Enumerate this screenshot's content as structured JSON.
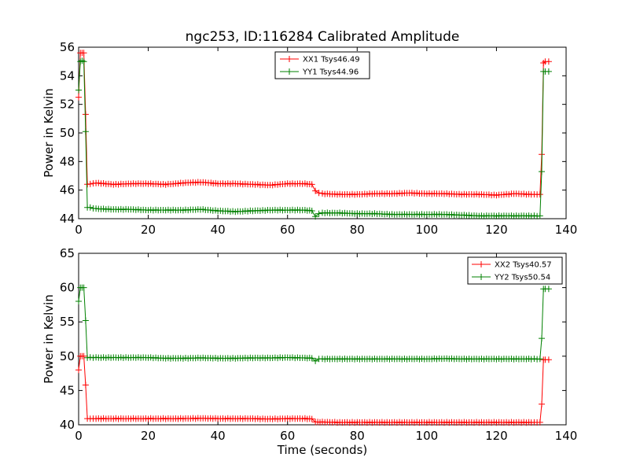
{
  "chart_data": [
    {
      "type": "line",
      "title": "ngc253, ID:116284 Calibrated Amplitude",
      "xlabel": "",
      "ylabel": "Power in Kelvin",
      "xlim": [
        0,
        140
      ],
      "ylim": [
        44,
        56
      ],
      "xticks": [
        "0",
        "20",
        "40",
        "60",
        "80",
        "100",
        "120",
        "140"
      ],
      "yticks": [
        "44",
        "46",
        "48",
        "50",
        "52",
        "54",
        "56"
      ],
      "legend": "top-center",
      "grid": false,
      "series": [
        {
          "name": "XX1 Tsys46.49",
          "color": "#ff0000",
          "points": [
            [
              0,
              52.5
            ],
            [
              0.5,
              55.6
            ],
            [
              1,
              55.6
            ],
            [
              1.5,
              55.6
            ],
            [
              2,
              51.3
            ],
            [
              2.5,
              46.4
            ],
            [
              5,
              46.5
            ],
            [
              10,
              46.4
            ],
            [
              15,
              46.45
            ],
            [
              20,
              46.45
            ],
            [
              25,
              46.4
            ],
            [
              30,
              46.5
            ],
            [
              35,
              46.55
            ],
            [
              38,
              46.5
            ],
            [
              40,
              46.45
            ],
            [
              45,
              46.45
            ],
            [
              50,
              46.4
            ],
            [
              55,
              46.35
            ],
            [
              60,
              46.45
            ],
            [
              65,
              46.45
            ],
            [
              67,
              46.4
            ],
            [
              68,
              45.95
            ],
            [
              69,
              45.8
            ],
            [
              70,
              45.75
            ],
            [
              75,
              45.7
            ],
            [
              80,
              45.7
            ],
            [
              85,
              45.75
            ],
            [
              90,
              45.75
            ],
            [
              95,
              45.8
            ],
            [
              100,
              45.75
            ],
            [
              105,
              45.75
            ],
            [
              110,
              45.7
            ],
            [
              115,
              45.7
            ],
            [
              120,
              45.65
            ],
            [
              125,
              45.75
            ],
            [
              130,
              45.7
            ],
            [
              132.5,
              45.7
            ],
            [
              133,
              48.5
            ],
            [
              133.5,
              54.9
            ],
            [
              134,
              55.0
            ],
            [
              135,
              55.0
            ]
          ]
        },
        {
          "name": "YY1 Tsys44.96",
          "color": "#008000",
          "points": [
            [
              0,
              53.0
            ],
            [
              0.5,
              55.0
            ],
            [
              1,
              55.05
            ],
            [
              1.5,
              55.0
            ],
            [
              2,
              50.1
            ],
            [
              2.5,
              44.8
            ],
            [
              5,
              44.7
            ],
            [
              10,
              44.65
            ],
            [
              15,
              44.65
            ],
            [
              20,
              44.6
            ],
            [
              25,
              44.6
            ],
            [
              30,
              44.6
            ],
            [
              35,
              44.65
            ],
            [
              40,
              44.55
            ],
            [
              45,
              44.5
            ],
            [
              50,
              44.55
            ],
            [
              55,
              44.6
            ],
            [
              60,
              44.6
            ],
            [
              65,
              44.6
            ],
            [
              67,
              44.55
            ],
            [
              68,
              44.15
            ],
            [
              69,
              44.35
            ],
            [
              70,
              44.4
            ],
            [
              75,
              44.4
            ],
            [
              80,
              44.35
            ],
            [
              85,
              44.35
            ],
            [
              90,
              44.3
            ],
            [
              95,
              44.3
            ],
            [
              100,
              44.3
            ],
            [
              105,
              44.3
            ],
            [
              110,
              44.25
            ],
            [
              115,
              44.2
            ],
            [
              120,
              44.2
            ],
            [
              125,
              44.2
            ],
            [
              130,
              44.2
            ],
            [
              132.5,
              44.2
            ],
            [
              133,
              47.3
            ],
            [
              133.5,
              54.3
            ],
            [
              134,
              54.3
            ],
            [
              135,
              54.3
            ]
          ]
        }
      ]
    },
    {
      "type": "line",
      "title": "",
      "xlabel": "Time (seconds)",
      "ylabel": "Power in Kelvin",
      "xlim": [
        0,
        140
      ],
      "ylim": [
        40,
        65
      ],
      "xticks": [
        "0",
        "20",
        "40",
        "60",
        "80",
        "100",
        "120",
        "140"
      ],
      "yticks": [
        "40",
        "45",
        "50",
        "55",
        "60",
        "65"
      ],
      "legend": "top-right",
      "grid": false,
      "series": [
        {
          "name": "XX2 Tsys40.57",
          "color": "#ff0000",
          "points": [
            [
              0,
              48.0
            ],
            [
              0.5,
              50.0
            ],
            [
              1,
              50.0
            ],
            [
              1.5,
              50.0
            ],
            [
              2,
              45.8
            ],
            [
              2.5,
              40.9
            ],
            [
              5,
              40.9
            ],
            [
              10,
              40.9
            ],
            [
              15,
              40.9
            ],
            [
              20,
              40.9
            ],
            [
              25,
              40.9
            ],
            [
              30,
              40.9
            ],
            [
              35,
              40.95
            ],
            [
              40,
              40.9
            ],
            [
              45,
              40.9
            ],
            [
              50,
              40.9
            ],
            [
              55,
              40.85
            ],
            [
              60,
              40.9
            ],
            [
              65,
              40.9
            ],
            [
              67,
              40.85
            ],
            [
              68,
              40.4
            ],
            [
              70,
              40.4
            ],
            [
              75,
              40.35
            ],
            [
              80,
              40.35
            ],
            [
              85,
              40.35
            ],
            [
              90,
              40.35
            ],
            [
              95,
              40.35
            ],
            [
              100,
              40.35
            ],
            [
              105,
              40.35
            ],
            [
              110,
              40.35
            ],
            [
              115,
              40.35
            ],
            [
              120,
              40.35
            ],
            [
              125,
              40.35
            ],
            [
              130,
              40.35
            ],
            [
              132.5,
              40.35
            ],
            [
              133,
              43.0
            ],
            [
              133.5,
              49.5
            ],
            [
              134,
              49.5
            ],
            [
              135,
              49.5
            ]
          ]
        },
        {
          "name": "YY2 Tsys50.54",
          "color": "#008000",
          "points": [
            [
              0,
              58.0
            ],
            [
              0.5,
              60.0
            ],
            [
              1,
              60.0
            ],
            [
              1.5,
              60.0
            ],
            [
              2,
              55.2
            ],
            [
              2.5,
              49.8
            ],
            [
              5,
              49.8
            ],
            [
              10,
              49.8
            ],
            [
              15,
              49.8
            ],
            [
              20,
              49.8
            ],
            [
              25,
              49.7
            ],
            [
              30,
              49.7
            ],
            [
              35,
              49.75
            ],
            [
              40,
              49.7
            ],
            [
              45,
              49.7
            ],
            [
              50,
              49.75
            ],
            [
              55,
              49.75
            ],
            [
              60,
              49.8
            ],
            [
              65,
              49.75
            ],
            [
              67,
              49.7
            ],
            [
              68,
              49.3
            ],
            [
              69,
              49.6
            ],
            [
              70,
              49.6
            ],
            [
              75,
              49.6
            ],
            [
              80,
              49.6
            ],
            [
              85,
              49.6
            ],
            [
              90,
              49.6
            ],
            [
              95,
              49.6
            ],
            [
              100,
              49.6
            ],
            [
              105,
              49.65
            ],
            [
              110,
              49.6
            ],
            [
              115,
              49.6
            ],
            [
              120,
              49.6
            ],
            [
              125,
              49.6
            ],
            [
              130,
              49.6
            ],
            [
              132.5,
              49.6
            ],
            [
              133,
              52.6
            ],
            [
              133.5,
              59.8
            ],
            [
              134,
              59.8
            ],
            [
              135,
              59.8
            ]
          ]
        }
      ]
    }
  ]
}
